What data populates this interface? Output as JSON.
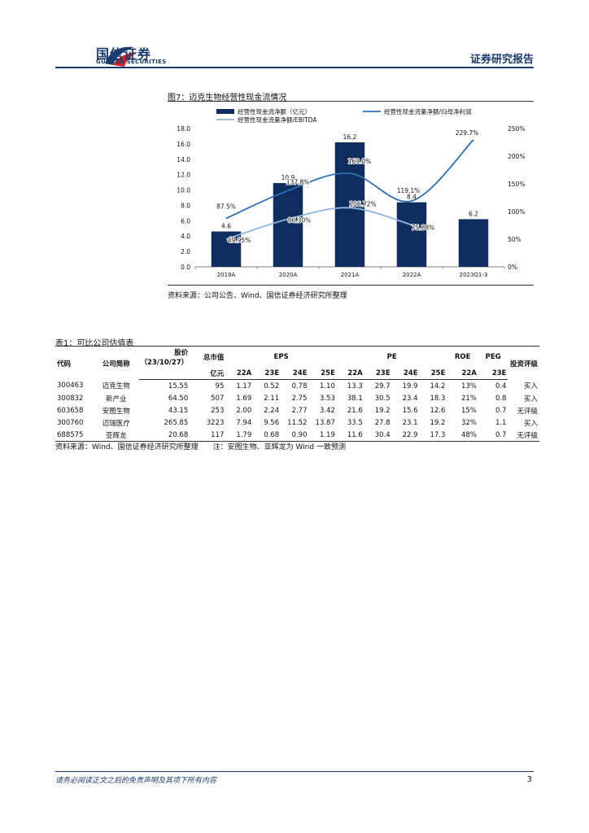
{
  "header": {
    "company_cn": "国信证券",
    "company_en": "GUOSEN SECURITIES",
    "report_type": "证券研究报告"
  },
  "figure": {
    "title": "图7：迈克生物经营性现金流情况",
    "source": "资料来源：公司公告、Wind、国信证券经济研究所整理"
  },
  "chart_data": {
    "type": "bar",
    "categories": [
      "2019A",
      "2020A",
      "2021A",
      "2022A",
      "2023Q1-3"
    ],
    "series": [
      {
        "name": "经营性现金流净额（亿元）",
        "kind": "bar",
        "axis": "left",
        "values": [
          4.6,
          10.9,
          16.2,
          8.4,
          6.2
        ],
        "labels": [
          "4.6",
          "10.9",
          "16.2",
          "8.4",
          "6.2"
        ]
      },
      {
        "name": "经营性现金流量净额/归母净利润",
        "kind": "line",
        "axis": "right",
        "values": [
          87.5,
          137.8,
          169.0,
          119.1,
          229.7
        ],
        "labels": [
          "87.5%",
          "137.8%",
          "169.0%",
          "119.1%",
          "229.7%"
        ]
      },
      {
        "name": "经营性现金流量净额/EBITDA",
        "kind": "line",
        "axis": "right",
        "values": [
          49.95,
          86.3,
          106.72,
          75.88,
          null
        ],
        "labels": [
          "49.95%",
          "86.30%",
          "106.72%",
          "75.88%",
          ""
        ]
      }
    ],
    "left_ticks": [
      "18.0",
      "16.0",
      "14.0",
      "12.0",
      "10.0",
      "8.0",
      "6.0",
      "4.0",
      "2.0",
      "0.0"
    ],
    "right_ticks": [
      "250%",
      "200%",
      "150%",
      "100%",
      "50%",
      "0%"
    ],
    "ylim": [
      0,
      18
    ],
    "y2lim": [
      0,
      250
    ],
    "colors": {
      "bar": "#0f2d5e",
      "line1": "#2e6fb5",
      "line2": "#8fb6dc"
    },
    "legend": "top"
  },
  "table": {
    "title": "表1：可比公司估值表",
    "headers": {
      "code": "代码",
      "name": "公司简称",
      "price": "股价",
      "price_date": "（23/10/27）",
      "mktcap": "总市值",
      "mktcap_unit": "亿元",
      "eps": "EPS",
      "pe": "PE",
      "roe": "ROE",
      "peg": "PEG",
      "rating": "投资评级"
    },
    "subheaders": {
      "eps": [
        "22A",
        "23E",
        "24E",
        "25E"
      ],
      "pe": [
        "22A",
        "23E",
        "24E",
        "25E"
      ],
      "roe": "22A",
      "peg": "23E"
    },
    "rows": [
      {
        "code": "300463",
        "name": "迈克生物",
        "price": "15.55",
        "mktcap": "95",
        "eps": [
          "1.17",
          "0.52",
          "0.78",
          "1.10"
        ],
        "pe": [
          "13.3",
          "29.7",
          "19.9",
          "14.2"
        ],
        "roe": "13%",
        "peg": "0.4",
        "rating": "买入"
      },
      {
        "code": "300832",
        "name": "新产业",
        "price": "64.50",
        "mktcap": "507",
        "eps": [
          "1.69",
          "2.11",
          "2.75",
          "3.53"
        ],
        "pe": [
          "38.1",
          "30.5",
          "23.4",
          "18.3"
        ],
        "roe": "21%",
        "peg": "0.8",
        "rating": "买入"
      },
      {
        "code": "603658",
        "name": "安图生物",
        "price": "43.15",
        "mktcap": "253",
        "eps": [
          "2.00",
          "2.24",
          "2.77",
          "3.42"
        ],
        "pe": [
          "21.6",
          "19.2",
          "15.6",
          "12.6"
        ],
        "roe": "15%",
        "peg": "0.7",
        "rating": "无评级"
      },
      {
        "code": "300760",
        "name": "迈瑞医疗",
        "price": "265.85",
        "mktcap": "3223",
        "eps": [
          "7.94",
          "9.56",
          "11.52",
          "13.87"
        ],
        "pe": [
          "33.5",
          "27.8",
          "23.1",
          "19.2"
        ],
        "roe": "32%",
        "peg": "1.1",
        "rating": "买入"
      },
      {
        "code": "688575",
        "name": "亚辉龙",
        "price": "20.68",
        "mktcap": "117",
        "eps": [
          "1.79",
          "0.68",
          "0.90",
          "1.19"
        ],
        "pe": [
          "11.6",
          "30.4",
          "22.9",
          "17.3"
        ],
        "roe": "48%",
        "peg": "0.7",
        "rating": "无评级"
      }
    ],
    "note": "资料来源：Wind、国信证券经济研究所整理　　注：安图生物、亚辉龙为 Wind 一致预测"
  },
  "footer": {
    "disclaimer": "请务必阅读正文之后的免责声明及其项下所有内容",
    "page": "3"
  }
}
